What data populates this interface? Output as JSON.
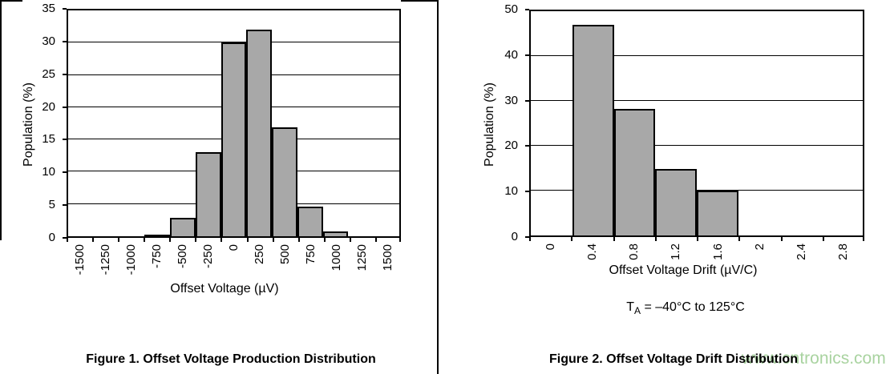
{
  "page": {
    "background": "#ffffff",
    "divider_color": "#000000",
    "text_color": "#000000"
  },
  "watermark": {
    "text": "www.cntronics.com",
    "color": "#a9d3a0"
  },
  "figure2_note": {
    "t": "T",
    "sub": "A",
    "rest": " = –40°C to 125°C"
  },
  "chart_data": [
    {
      "type": "bar",
      "title": "Figure 1. Offset Voltage Production Distribution",
      "xlabel": "Offset Voltage (µV)",
      "ylabel": "Population (%)",
      "categories": [
        "-1500",
        "-1250",
        "-1000",
        "-750",
        "-500",
        "-250",
        "0",
        "250",
        "500",
        "750",
        "1000",
        "1250",
        "1500"
      ],
      "values": [
        0,
        0,
        0,
        0.3,
        2.9,
        13,
        30,
        32,
        16.9,
        4.6,
        0.7,
        0,
        0
      ],
      "ylim": [
        0,
        35
      ],
      "yticks": [
        0,
        5,
        10,
        15,
        20,
        25,
        30,
        35
      ],
      "grid": true,
      "legend": false,
      "bar_color": "#a8a8a8",
      "bar_border_color": "#000000"
    },
    {
      "type": "bar",
      "title": "Figure 2. Offset Voltage Drift Distribution",
      "xlabel": "Offset Voltage Drift (µV/C)",
      "ylabel": "Population (%)",
      "categories": [
        "0",
        "0.4",
        "0.8",
        "1.2",
        "1.6",
        "2",
        "2.4",
        "2.8"
      ],
      "values": [
        0,
        47,
        28.3,
        14.8,
        10,
        0,
        0,
        0
      ],
      "ylim": [
        0,
        50
      ],
      "yticks": [
        0,
        10,
        20,
        30,
        40,
        50
      ],
      "grid": true,
      "legend": false,
      "bar_color": "#a8a8a8",
      "bar_border_color": "#000000",
      "condition_note": "TA = –40°C to 125°C"
    }
  ]
}
